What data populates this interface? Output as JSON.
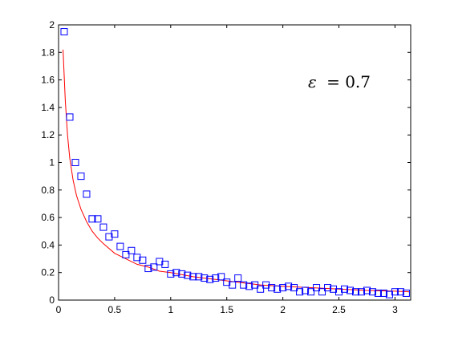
{
  "chart_data": {
    "type": "scatter",
    "xlim": [
      0,
      3.14
    ],
    "ylim": [
      0,
      2
    ],
    "x_ticks": [
      "0",
      "0.5",
      "1",
      "1.5",
      "2",
      "2.5",
      "3"
    ],
    "y_ticks": [
      "0",
      "0.2",
      "0.4",
      "0.6",
      "0.8",
      "1",
      "1.2",
      "1.4",
      "1.6",
      "1.8",
      "2"
    ],
    "grid": false,
    "annotation": {
      "symbol": "ε",
      "text": "= 0.7"
    },
    "series": [
      {
        "kind": "markers",
        "marker": "square",
        "color": "#0000ff",
        "points": [
          [
            0.05,
            1.95
          ],
          [
            0.1,
            1.33
          ],
          [
            0.15,
            1.0
          ],
          [
            0.2,
            0.9
          ],
          [
            0.25,
            0.77
          ],
          [
            0.3,
            0.59
          ],
          [
            0.35,
            0.59
          ],
          [
            0.4,
            0.53
          ],
          [
            0.45,
            0.46
          ],
          [
            0.5,
            0.48
          ],
          [
            0.55,
            0.39
          ],
          [
            0.6,
            0.33
          ],
          [
            0.65,
            0.36
          ],
          [
            0.7,
            0.31
          ],
          [
            0.75,
            0.29
          ],
          [
            0.8,
            0.23
          ],
          [
            0.85,
            0.24
          ],
          [
            0.9,
            0.28
          ],
          [
            0.95,
            0.26
          ],
          [
            1.0,
            0.19
          ],
          [
            1.05,
            0.2
          ],
          [
            1.1,
            0.19
          ],
          [
            1.15,
            0.18
          ],
          [
            1.2,
            0.17
          ],
          [
            1.25,
            0.17
          ],
          [
            1.3,
            0.16
          ],
          [
            1.35,
            0.15
          ],
          [
            1.4,
            0.16
          ],
          [
            1.45,
            0.17
          ],
          [
            1.5,
            0.13
          ],
          [
            1.55,
            0.11
          ],
          [
            1.6,
            0.16
          ],
          [
            1.65,
            0.11
          ],
          [
            1.7,
            0.1
          ],
          [
            1.75,
            0.11
          ],
          [
            1.8,
            0.08
          ],
          [
            1.85,
            0.11
          ],
          [
            1.9,
            0.09
          ],
          [
            1.95,
            0.08
          ],
          [
            2.0,
            0.09
          ],
          [
            2.05,
            0.1
          ],
          [
            2.1,
            0.09
          ],
          [
            2.15,
            0.06
          ],
          [
            2.2,
            0.07
          ],
          [
            2.25,
            0.06
          ],
          [
            2.3,
            0.09
          ],
          [
            2.35,
            0.06
          ],
          [
            2.4,
            0.09
          ],
          [
            2.45,
            0.08
          ],
          [
            2.5,
            0.06
          ],
          [
            2.55,
            0.08
          ],
          [
            2.6,
            0.07
          ],
          [
            2.65,
            0.06
          ],
          [
            2.7,
            0.06
          ],
          [
            2.75,
            0.07
          ],
          [
            2.8,
            0.06
          ],
          [
            2.85,
            0.05
          ],
          [
            2.9,
            0.05
          ],
          [
            2.95,
            0.04
          ],
          [
            3.0,
            0.06
          ],
          [
            3.05,
            0.06
          ],
          [
            3.1,
            0.05
          ]
        ]
      },
      {
        "kind": "line",
        "color": "#ff0000",
        "x": [
          0.04,
          0.06,
          0.08,
          0.1,
          0.13,
          0.16,
          0.2,
          0.25,
          0.3,
          0.35,
          0.4,
          0.5,
          0.6,
          0.7,
          0.8,
          0.9,
          1.0,
          1.2,
          1.4,
          1.6,
          1.8,
          2.0,
          2.25,
          2.5,
          2.75,
          3.0,
          3.13
        ],
        "y": [
          1.82,
          1.45,
          1.2,
          1.03,
          0.87,
          0.76,
          0.66,
          0.57,
          0.5,
          0.45,
          0.41,
          0.34,
          0.3,
          0.26,
          0.24,
          0.21,
          0.2,
          0.17,
          0.15,
          0.13,
          0.11,
          0.1,
          0.09,
          0.08,
          0.07,
          0.065,
          0.06
        ]
      }
    ]
  }
}
